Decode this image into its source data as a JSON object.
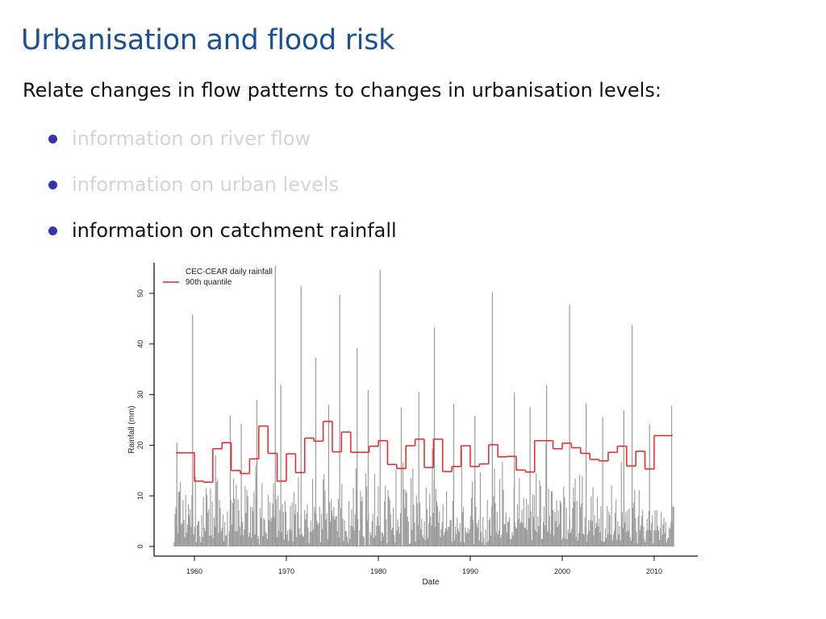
{
  "slide": {
    "title": "Urbanisation and flood risk",
    "intro": "Relate changes in flow patterns to changes in urbanisation levels:",
    "bullets": [
      {
        "label": "information on river flow",
        "state": "muted"
      },
      {
        "label": "information on urban levels",
        "state": "muted"
      },
      {
        "label": "information on catchment rainfall",
        "state": "active"
      }
    ],
    "colors": {
      "title": "#1b4f96",
      "bullet": "#3333b3",
      "muted_text": "#d4d4d4"
    }
  },
  "chart_data": {
    "type": "line",
    "title": "",
    "xlabel": "Date",
    "ylabel": "Rainfall (mm)",
    "xlim": [
      1956,
      2015
    ],
    "ylim": [
      0,
      56
    ],
    "xticks": [
      1960,
      1970,
      1980,
      1990,
      2000,
      2010
    ],
    "yticks": [
      0,
      10,
      20,
      30,
      40,
      50
    ],
    "grid": false,
    "legend": {
      "position": "top-left",
      "entries": [
        "CEC-CEAR daily rainfall",
        "90th quantile"
      ]
    },
    "series": [
      {
        "name": "CEC-CEAR daily rainfall",
        "color": "#999999",
        "style": "spikes",
        "peaks": [
          {
            "x": 1958.1,
            "y": 20.5
          },
          {
            "x": 1959.8,
            "y": 45.8
          },
          {
            "x": 1962.3,
            "y": 18
          },
          {
            "x": 1963.9,
            "y": 25.9
          },
          {
            "x": 1965.1,
            "y": 24.2
          },
          {
            "x": 1966.8,
            "y": 29
          },
          {
            "x": 1968.8,
            "y": 55.5
          },
          {
            "x": 1969.4,
            "y": 31.9
          },
          {
            "x": 1971.6,
            "y": 51.5
          },
          {
            "x": 1973.2,
            "y": 37.3
          },
          {
            "x": 1974.6,
            "y": 28
          },
          {
            "x": 1975.8,
            "y": 49.7
          },
          {
            "x": 1977.7,
            "y": 39.2
          },
          {
            "x": 1978.9,
            "y": 30.9
          },
          {
            "x": 1980.2,
            "y": 54.7
          },
          {
            "x": 1982.5,
            "y": 27.5
          },
          {
            "x": 1984.4,
            "y": 30.6
          },
          {
            "x": 1986.1,
            "y": 43.3
          },
          {
            "x": 1988.2,
            "y": 28.2
          },
          {
            "x": 1990.5,
            "y": 25.8
          },
          {
            "x": 1992.4,
            "y": 50.2
          },
          {
            "x": 1994.8,
            "y": 30.4
          },
          {
            "x": 1996.5,
            "y": 27.5
          },
          {
            "x": 1998.3,
            "y": 31.8
          },
          {
            "x": 2000.8,
            "y": 47.8
          },
          {
            "x": 2002.6,
            "y": 28.3
          },
          {
            "x": 2004.4,
            "y": 25.6
          },
          {
            "x": 2006.7,
            "y": 26.9
          },
          {
            "x": 2007.6,
            "y": 43.8
          },
          {
            "x": 2009.5,
            "y": 24.1
          },
          {
            "x": 2011.9,
            "y": 27.8
          }
        ]
      },
      {
        "name": "90th quantile",
        "color": "#ee2222",
        "style": "step-annual",
        "x": [
          1958,
          1959,
          1960,
          1961,
          1962,
          1963,
          1964,
          1965,
          1966,
          1967,
          1968,
          1969,
          1970,
          1971,
          1972,
          1973,
          1974,
          1975,
          1976,
          1977,
          1978,
          1979,
          1980,
          1981,
          1982,
          1983,
          1984,
          1985,
          1986,
          1987,
          1988,
          1989,
          1990,
          1991,
          1992,
          1993,
          1994,
          1995,
          1996,
          1997,
          1998,
          1999,
          2000,
          2001,
          2002,
          2003,
          2004,
          2005,
          2006,
          2007,
          2008,
          2009,
          2010,
          2011
        ],
        "y": [
          18.5,
          18.5,
          12.9,
          12.7,
          19.3,
          20.5,
          15.0,
          14.4,
          17.3,
          23.8,
          18.4,
          12.9,
          18.3,
          14.6,
          21.4,
          20.8,
          24.7,
          18.7,
          22.6,
          18.6,
          18.6,
          19.8,
          20.9,
          16.2,
          15.4,
          19.9,
          21.2,
          15.6,
          21.2,
          14.8,
          15.8,
          19.9,
          15.8,
          16.3,
          20.1,
          17.7,
          17.8,
          15.1,
          14.7,
          20.9,
          20.9,
          19.3,
          20.4,
          19.5,
          18.4,
          17.2,
          16.9,
          18.6,
          19.8,
          15.9,
          18.8,
          15.3,
          21.9,
          21.9
        ]
      }
    ]
  }
}
